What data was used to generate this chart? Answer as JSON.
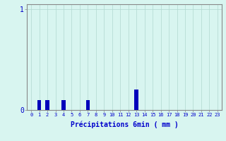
{
  "hours": [
    0,
    1,
    2,
    3,
    4,
    5,
    6,
    7,
    8,
    9,
    10,
    11,
    12,
    13,
    14,
    15,
    16,
    17,
    18,
    19,
    20,
    21,
    22,
    23
  ],
  "values": [
    0,
    0.1,
    0.1,
    0,
    0.1,
    0,
    0,
    0.1,
    0,
    0,
    0,
    0,
    0,
    0.2,
    0,
    0,
    0,
    0,
    0,
    0,
    0,
    0,
    0,
    0
  ],
  "bar_color": "#0000bb",
  "bg_color": "#d8f5f0",
  "grid_color": "#b0d8d0",
  "axis_color": "#888888",
  "text_color": "#0000cc",
  "ylim_max": 1.05,
  "yticks": [
    0,
    1
  ],
  "xlabel": "Précipitations 6min ( mm )",
  "xlabel_fontsize": 7,
  "tick_fontsize": 5,
  "ytick_fontsize": 7
}
